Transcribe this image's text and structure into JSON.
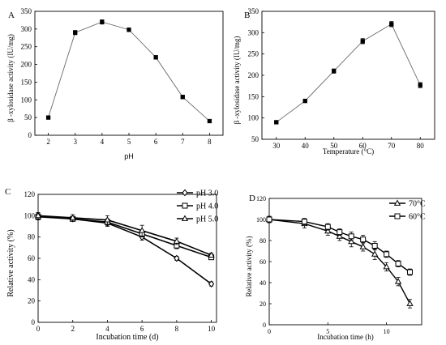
{
  "colors": {
    "line": "#6a6a6a",
    "dark": "#000000",
    "background": "#ffffff"
  },
  "chart_data": [
    {
      "panel": "A",
      "type": "line",
      "xlabel": "pH",
      "ylabel": "β -xylosidase activity (IU/mg)",
      "xlim": [
        1.5,
        8.5
      ],
      "ylim": [
        0,
        350
      ],
      "xticks": [
        2,
        3,
        4,
        5,
        6,
        7,
        8
      ],
      "yticks": [
        0,
        50,
        100,
        150,
        200,
        250,
        300,
        350
      ],
      "grid": false,
      "series": [
        {
          "marker": "square-filled",
          "x": [
            2,
            3,
            4,
            5,
            6,
            7,
            8
          ],
          "values": [
            50,
            290,
            320,
            298,
            220,
            108,
            40
          ],
          "err": [
            3,
            6,
            6,
            5,
            5,
            5,
            3
          ]
        }
      ]
    },
    {
      "panel": "B",
      "type": "line",
      "xlabel": "Temperature (°C)",
      "ylabel": "β -xylosidase activity (IU/mg)",
      "xlim": [
        25,
        85
      ],
      "ylim": [
        50,
        350
      ],
      "xticks": [
        30,
        40,
        50,
        60,
        70,
        80
      ],
      "yticks": [
        50,
        100,
        150,
        200,
        250,
        300,
        350
      ],
      "grid": false,
      "series": [
        {
          "marker": "square-filled",
          "x": [
            30,
            40,
            50,
            60,
            70,
            80
          ],
          "values": [
            90,
            140,
            210,
            280,
            320,
            177
          ],
          "err": [
            4,
            4,
            5,
            6,
            6,
            6
          ]
        }
      ]
    },
    {
      "panel": "C",
      "type": "line",
      "xlabel": "Incubation time (d)",
      "ylabel": "Relative activity (%)",
      "xlim": [
        0,
        10.3
      ],
      "ylim": [
        0,
        120
      ],
      "xticks": [
        0,
        2,
        4,
        6,
        8,
        10
      ],
      "yticks": [
        0,
        20,
        40,
        60,
        80,
        100,
        120
      ],
      "grid": false,
      "legend": "top-right",
      "series": [
        {
          "name": "pH 3.0",
          "marker": "diamond",
          "x": [
            0,
            2,
            4,
            6,
            8,
            10
          ],
          "values": [
            100,
            97,
            93,
            80,
            60,
            36
          ],
          "err": [
            3,
            2,
            3,
            3,
            2,
            2
          ]
        },
        {
          "name": "pH 4.0",
          "marker": "square",
          "x": [
            0,
            2,
            4,
            6,
            8,
            10
          ],
          "values": [
            99,
            97,
            94,
            83,
            72,
            61
          ],
          "err": [
            3,
            2,
            3,
            3,
            3,
            2
          ]
        },
        {
          "name": "pH 5.0",
          "marker": "triangle",
          "x": [
            0,
            2,
            4,
            6,
            8,
            10
          ],
          "values": [
            100,
            98,
            96,
            86,
            76,
            63
          ],
          "err": [
            3,
            3,
            4,
            5,
            3,
            2
          ]
        }
      ]
    },
    {
      "panel": "D",
      "type": "line",
      "xlabel": "Incubation time (h)",
      "ylabel": "Relative activity (%)",
      "xlim": [
        0,
        13
      ],
      "ylim": [
        0,
        120
      ],
      "xticks": [
        0,
        5,
        10
      ],
      "yticks": [
        0,
        20,
        40,
        60,
        80,
        100,
        120
      ],
      "grid": false,
      "legend": "top-right",
      "series": [
        {
          "name": "70°C",
          "marker": "triangle",
          "x": [
            0,
            3,
            5,
            6,
            7,
            8,
            9,
            10,
            11,
            12
          ],
          "values": [
            100,
            96,
            89,
            84,
            79,
            74,
            67,
            55,
            41,
            20
          ],
          "err": [
            3,
            4,
            4,
            4,
            5,
            4,
            5,
            4,
            4,
            4
          ]
        },
        {
          "name": "60°C",
          "marker": "square",
          "x": [
            0,
            3,
            5,
            6,
            7,
            8,
            9,
            10,
            11,
            12
          ],
          "values": [
            100,
            98,
            93,
            88,
            84,
            81,
            75,
            67,
            58,
            50
          ],
          "err": [
            3,
            3,
            3,
            3,
            4,
            4,
            4,
            3,
            3,
            3
          ]
        }
      ]
    }
  ]
}
